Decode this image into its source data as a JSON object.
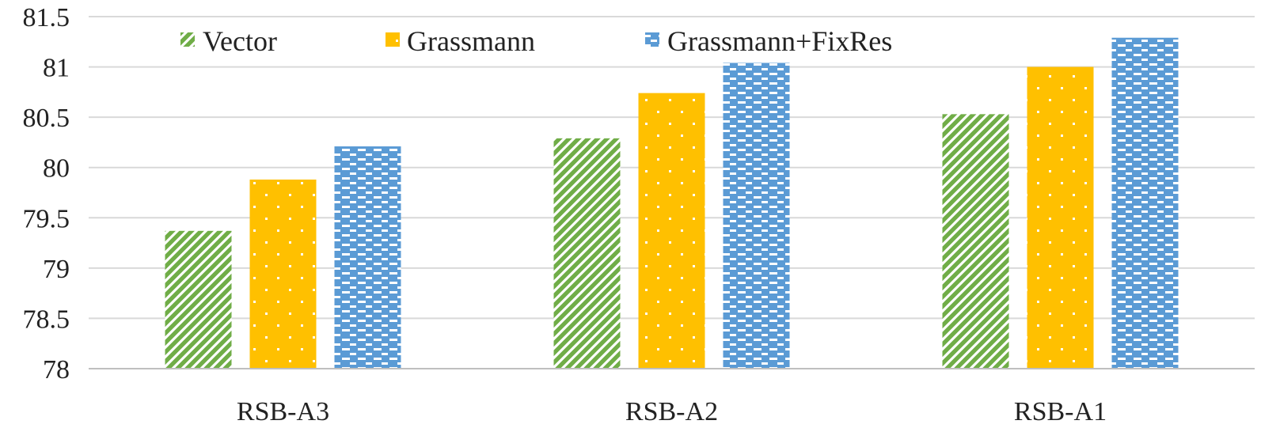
{
  "chart_data": {
    "type": "bar",
    "categories": [
      "RSB-A3",
      "RSB-A2",
      "RSB-A1"
    ],
    "series": [
      {
        "name": "Vector",
        "values": [
          79.37,
          80.29,
          80.53
        ],
        "color": "#70ad47",
        "pattern": "diagonal-stripes"
      },
      {
        "name": "Grassmann",
        "values": [
          79.88,
          80.74,
          81.0
        ],
        "color": "#ffc000",
        "pattern": "dots"
      },
      {
        "name": "Grassmann+FixRes",
        "values": [
          80.21,
          81.04,
          81.29
        ],
        "color": "#5b9bd5",
        "pattern": "dashes"
      }
    ],
    "ylim": [
      78,
      81.5
    ],
    "yticks": [
      "78",
      "78.5",
      "79",
      "79.5",
      "80",
      "80.5",
      "81",
      "81.5"
    ],
    "grid": true,
    "legend": "top"
  }
}
